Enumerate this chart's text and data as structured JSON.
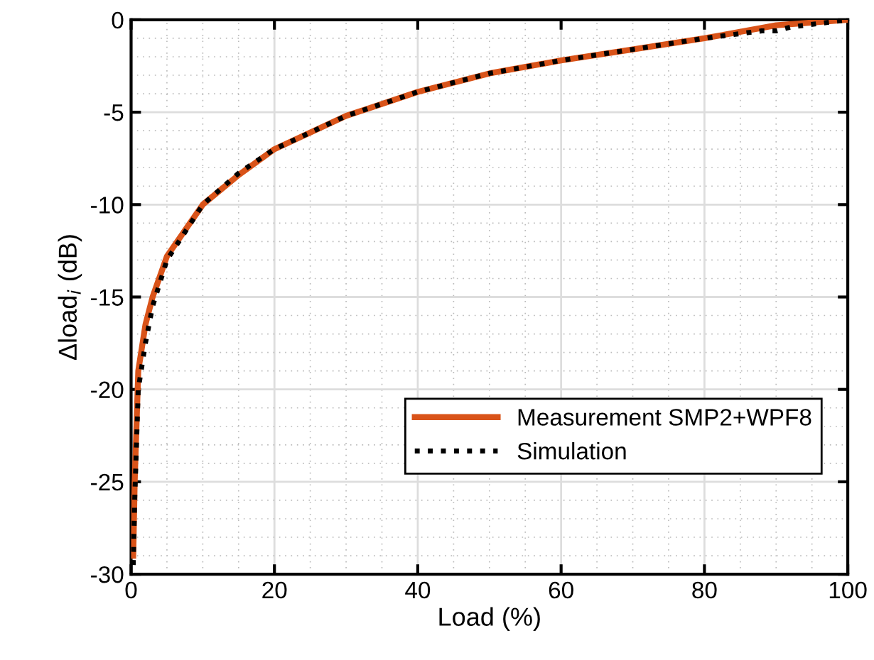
{
  "chart_data": {
    "type": "line",
    "xlabel": "Load (%)",
    "ylabel": "Δload$_{i}$ (dB)",
    "xlim": [
      0,
      100
    ],
    "xticks": [
      0,
      20,
      40,
      60,
      80,
      100
    ],
    "ylim": [
      -30,
      0
    ],
    "yticks": [
      -30,
      -25,
      -20,
      -15,
      -10,
      -5,
      0
    ],
    "grid": true,
    "legend": "lower right",
    "series": [
      {
        "name": "Measurement SMP2+WPF8",
        "color": "#d95319",
        "line_style": "solid",
        "x": [
          0.3,
          0.5,
          1,
          2,
          3,
          5,
          10,
          15,
          20,
          30,
          40,
          50,
          60,
          70,
          80,
          90,
          100
        ],
        "values": [
          -29,
          -25,
          -19,
          -16.5,
          -15,
          -12.8,
          -10,
          -8.4,
          -7,
          -5.2,
          -3.9,
          -2.9,
          -2.2,
          -1.6,
          -1,
          -0.3,
          0
        ]
      },
      {
        "name": "Simulation",
        "color": "#000000",
        "line_style": "dotted",
        "x": [
          0.3,
          0.5,
          1,
          2,
          3,
          5,
          10,
          15,
          20,
          30,
          40,
          50,
          60,
          70,
          80,
          88,
          90,
          92,
          100
        ],
        "values": [
          -29.5,
          -26,
          -20,
          -17.5,
          -15.5,
          -13,
          -10,
          -8.3,
          -7,
          -5.2,
          -3.9,
          -2.9,
          -2.2,
          -1.6,
          -1,
          -0.6,
          -0.6,
          -0.4,
          0
        ]
      }
    ]
  }
}
